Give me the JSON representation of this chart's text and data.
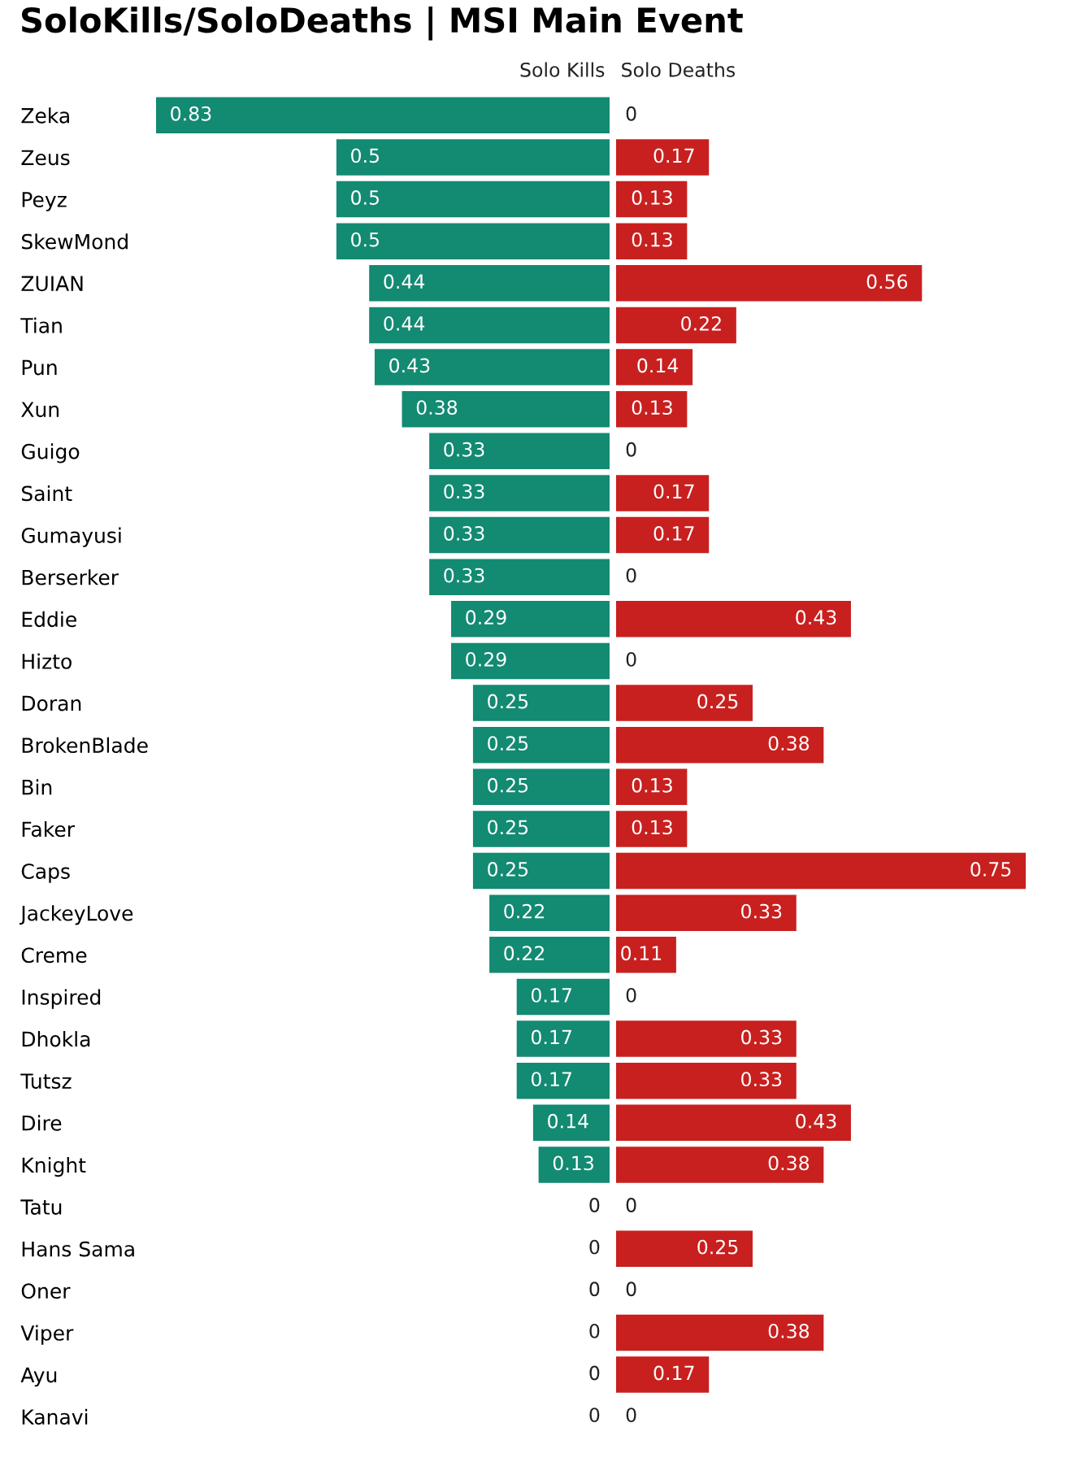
{
  "chart_data": [
    {
      "type": "bar",
      "orientation": "horizontal",
      "title": "SoloKills/SoloDeaths | MSI Main Event",
      "categories": [
        "Zeka",
        "Zeus",
        "Peyz",
        "SkewMond",
        "ZUIAN",
        "Tian",
        "Pun",
        "Xun",
        "Guigo",
        "Saint",
        "Gumayusi",
        "Berserker",
        "Eddie",
        "Hizto",
        "Doran",
        "BrokenBlade",
        "Bin",
        "Faker",
        "Caps",
        "JackeyLove",
        "Creme",
        "Inspired",
        "Dhokla",
        "Tutsz",
        "Dire",
        "Knight",
        "Tatu",
        "Hans Sama",
        "Oner",
        "Viper",
        "Ayu",
        "Kanavi"
      ],
      "series": [
        {
          "name": "Solo Kills",
          "color": "#138a72",
          "values": [
            0.83,
            0.5,
            0.5,
            0.5,
            0.44,
            0.44,
            0.43,
            0.38,
            0.33,
            0.33,
            0.33,
            0.33,
            0.29,
            0.29,
            0.25,
            0.25,
            0.25,
            0.25,
            0.25,
            0.22,
            0.22,
            0.17,
            0.17,
            0.17,
            0.14,
            0.13,
            0,
            0,
            0,
            0,
            0,
            0
          ]
        }
      ],
      "xlim": [
        0.83,
        0
      ],
      "data_labels": true,
      "tick_labels": "y"
    },
    {
      "type": "bar",
      "orientation": "horizontal",
      "categories": [
        null,
        null,
        null,
        null,
        null,
        null,
        null,
        null,
        null,
        null,
        null,
        null,
        null,
        null,
        null,
        null,
        null,
        null,
        null,
        null,
        null,
        null,
        null,
        null,
        null,
        null,
        null,
        null,
        null,
        null,
        null,
        null
      ],
      "series": [
        {
          "name": "Solo Deaths",
          "color": "#c8201f",
          "values": [
            0,
            0.17,
            0.13,
            0.13,
            0.56,
            0.22,
            0.14,
            0.13,
            0,
            0.17,
            0.17,
            0,
            0.43,
            0,
            0.25,
            0.38,
            0.13,
            0.13,
            0.75,
            0.33,
            0.11,
            0,
            0.33,
            0.33,
            0.43,
            0.38,
            0,
            0.25,
            0,
            0.38,
            0.17,
            0
          ]
        }
      ],
      "xlim": [
        0,
        0.75
      ],
      "data_labels": true,
      "tick_labels": false
    }
  ]
}
